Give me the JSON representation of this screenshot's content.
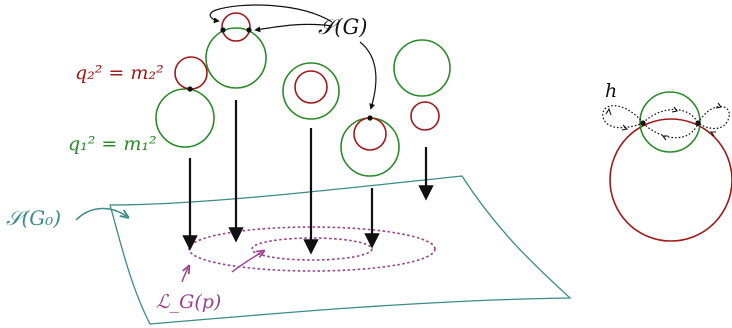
{
  "labels": {
    "surface_g0": "𝒮(G₀)",
    "surface_g": "𝒮(G)",
    "q2": "q₂² = m₂²",
    "q1": "q₁² = m₁²",
    "level_set": "ℒ_G(p)",
    "h": "h"
  },
  "colors": {
    "green_circle": "#2b8a2b",
    "red_circle": "#a01818",
    "surface_edge": "#3a8b8a",
    "level_curves": "#9a3e8e",
    "arrows": "#111111"
  }
}
